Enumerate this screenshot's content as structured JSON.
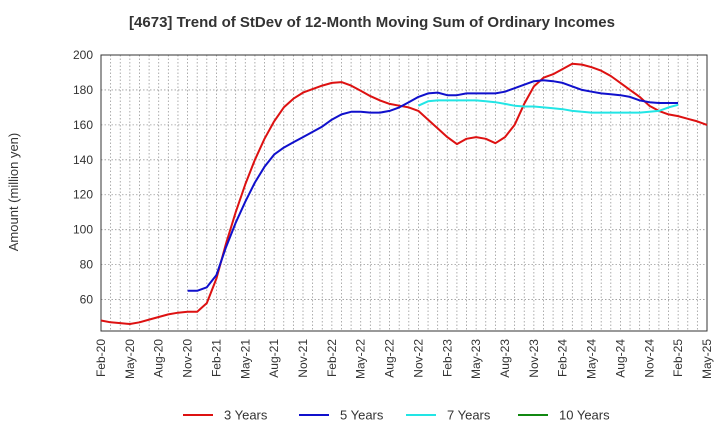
{
  "chart_data": {
    "type": "line",
    "title": "[4673]  Trend of StDev of 12-Month Moving Sum of Ordinary Incomes",
    "xlabel": "",
    "ylabel": "Amount (million yen)",
    "ylim": [
      42,
      200
    ],
    "yticks": [
      60,
      80,
      100,
      120,
      140,
      160,
      180,
      200
    ],
    "x_start": "Feb-20",
    "x_tick_labels": [
      "Feb-20",
      "May-20",
      "Aug-20",
      "Nov-20",
      "Feb-21",
      "May-21",
      "Aug-21",
      "Nov-21",
      "Feb-22",
      "May-22",
      "Aug-22",
      "Nov-22",
      "Feb-23",
      "May-23",
      "Aug-23",
      "Nov-23",
      "Feb-24",
      "May-24",
      "Aug-24",
      "Nov-24",
      "Feb-25",
      "May-25"
    ],
    "grid": true,
    "legend_position": "bottom",
    "series": [
      {
        "name": "3 Years",
        "color": "#dd1111",
        "start_index": 0,
        "values": [
          48,
          47,
          46.5,
          46,
          47,
          48.5,
          50,
          51.5,
          52.5,
          53,
          53,
          58,
          72,
          92,
          110,
          126,
          140,
          152,
          162,
          170,
          175,
          178.5,
          180.5,
          182.5,
          184,
          184.5,
          182.5,
          179.5,
          176.5,
          174,
          172,
          171,
          170,
          168,
          163,
          158,
          153,
          149,
          152,
          153,
          152,
          149.5,
          153,
          160,
          172,
          182,
          187,
          189,
          192,
          195,
          194.5,
          193,
          191,
          188,
          184,
          180,
          176,
          171,
          168,
          166,
          165,
          163.5,
          162,
          160
        ]
      },
      {
        "name": "5 Years",
        "color": "#1010cc",
        "start_index": 9,
        "values": [
          65,
          65,
          67,
          74,
          90,
          104,
          116,
          127,
          136,
          143,
          147,
          150,
          153,
          156,
          159,
          163,
          166,
          167.5,
          167.5,
          167,
          167,
          168,
          170,
          173,
          176,
          178,
          178.5,
          177,
          177,
          178,
          178,
          178,
          178,
          179,
          181,
          183,
          185,
          185.5,
          185,
          184,
          182,
          180,
          179,
          178,
          177.5,
          177,
          176,
          174,
          173,
          172.5,
          172.5,
          172.5
        ]
      },
      {
        "name": "7 Years",
        "color": "#22e5e5",
        "start_index": 33,
        "values": [
          171,
          173.5,
          174,
          174,
          174,
          174,
          174,
          173.5,
          173,
          172,
          171,
          170.5,
          170.5,
          170,
          169.5,
          169,
          168,
          167.5,
          167,
          167,
          167,
          167,
          167,
          167,
          167.5,
          168,
          170,
          171.5
        ]
      },
      {
        "name": "10 Years",
        "color": "#118811",
        "start_index": 0,
        "values": []
      }
    ]
  }
}
